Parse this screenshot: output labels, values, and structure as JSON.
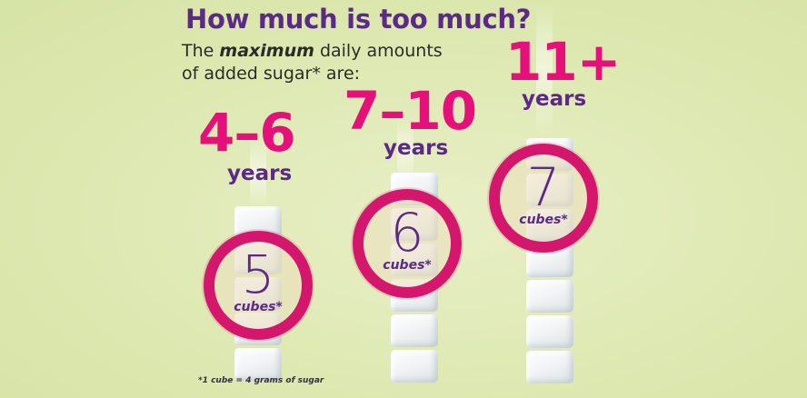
{
  "header": {
    "title": "How much is too much?",
    "subtitle_pre": "The ",
    "subtitle_em": "maximum",
    "subtitle_post": " daily amounts of added sugar* are:"
  },
  "groups": [
    {
      "age": "4–6",
      "unit": "years",
      "count": "5",
      "count_label": "cubes*"
    },
    {
      "age": "7–10",
      "unit": "years",
      "count": "6",
      "count_label": "cubes*"
    },
    {
      "age": "11+",
      "unit": "years",
      "count": "7",
      "count_label": "cubes*"
    }
  ],
  "footnote": "*1 cube = 4 grams of sugar",
  "colors": {
    "background": "#dfe9b4",
    "title": "#5b2a86",
    "age": "#e5107a",
    "ring": "#d4176c"
  }
}
